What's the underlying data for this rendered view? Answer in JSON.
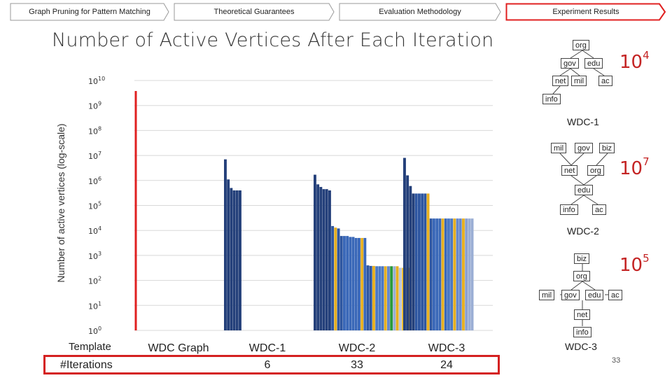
{
  "nav": {
    "tabs": [
      {
        "label": "Graph Pruning for Pattern Matching",
        "active": false
      },
      {
        "label": "Theoretical Guarantees",
        "active": false
      },
      {
        "label": "Evaluation Methodology",
        "active": false
      },
      {
        "label": "Experiment Results",
        "active": true
      }
    ],
    "active_color": "#e02020"
  },
  "slide": {
    "title": "Number of Active Vertices After Each Iteration",
    "page_number": "33"
  },
  "chart_data": {
    "type": "bar",
    "ylabel": "Number of active vertices (log-scale)",
    "yscale": "log",
    "ylim": [
      1,
      10000000000
    ],
    "y_ticks": [
      {
        "base": "10",
        "exp": "10"
      },
      {
        "base": "10",
        "exp": "9"
      },
      {
        "base": "10",
        "exp": "8"
      },
      {
        "base": "10",
        "exp": "7"
      },
      {
        "base": "10",
        "exp": "6"
      },
      {
        "base": "10",
        "exp": "5"
      },
      {
        "base": "10",
        "exp": "4"
      },
      {
        "base": "10",
        "exp": "3"
      },
      {
        "base": "10",
        "exp": "2"
      },
      {
        "base": "10",
        "exp": "1"
      },
      {
        "base": "10",
        "exp": "0"
      }
    ],
    "grid": true,
    "groups": [
      {
        "name": "WDC Graph",
        "iterations": "",
        "values": []
      },
      {
        "name": "WDC-1",
        "iterations": "6",
        "values": [
          7000000,
          1100000,
          500000,
          400000,
          400000,
          400000
        ]
      },
      {
        "name": "WDC-2",
        "iterations": "33",
        "values": [
          1700000,
          700000,
          550000,
          450000,
          450000,
          400000,
          15000,
          13000,
          12000,
          6000,
          6000,
          6000,
          5500,
          5500,
          5000,
          5000,
          5000,
          5000,
          400,
          380,
          380,
          370,
          370,
          370,
          370,
          370,
          370,
          370,
          370,
          320,
          320,
          320,
          320
        ],
        "colors": [
          "#24407a",
          "#24407a",
          "#24407a",
          "#24407a",
          "#24407a",
          "#24407a",
          "#2e56a0",
          "#e8b020",
          "#2e56a0",
          "#2e56a0",
          "#3a68b8",
          "#3a68b8",
          "#3a68b8",
          "#3a68b8",
          "#3a68b8",
          "#3a68b8",
          "#e8b020",
          "#3a68b8",
          "#2e56a0",
          "#2e56a0",
          "#e8b020",
          "#4a78c4",
          "#4a78c4",
          "#4a78c4",
          "#e8b020",
          "#6688cc",
          "#2a9a3a",
          "#9aaed4",
          "#e8b020",
          "#b8c4da",
          "#f0c030",
          "#c8cede",
          "#e8b020"
        ]
      },
      {
        "name": "WDC-3",
        "iterations": "24",
        "values": [
          8000000,
          1600000,
          600000,
          300000,
          300000,
          300000,
          300000,
          300000,
          300000,
          30000,
          30000,
          30000,
          30000,
          30000,
          30000,
          30000,
          30000,
          30000,
          30000,
          30000,
          30000,
          30000,
          30000,
          30000
        ],
        "colors": [
          "#24407a",
          "#24407a",
          "#24407a",
          "#24407a",
          "#2e56a0",
          "#2e56a0",
          "#2e56a0",
          "#2e56a0",
          "#e8b020",
          "#2e56a0",
          "#3a68b8",
          "#3a68b8",
          "#3a68b8",
          "#e8b020",
          "#3a68b8",
          "#4a78c4",
          "#4a78c4",
          "#e8b020",
          "#6688cc",
          "#6688cc",
          "#e8b020",
          "#8aa0d0",
          "#9aaed4",
          "#9aaed4"
        ]
      }
    ],
    "row_label": "#Iterations",
    "template_label": "Template",
    "colors": {
      "dark_bar": "#24407a",
      "mid_bar": "#3a68b8",
      "gold_bar": "#e8b020",
      "green_bar": "#2a9a3a",
      "red_line": "#e02020"
    }
  },
  "templates": [
    {
      "name": "WDC-1",
      "count_base": "10",
      "count_exp": "4",
      "nodes": [
        {
          "id": "org",
          "label": "org"
        },
        {
          "id": "gov",
          "label": "gov"
        },
        {
          "id": "edu",
          "label": "edu"
        },
        {
          "id": "net",
          "label": "net"
        },
        {
          "id": "mil",
          "label": "mil"
        },
        {
          "id": "ac",
          "label": "ac"
        },
        {
          "id": "info",
          "label": "info"
        }
      ]
    },
    {
      "name": "WDC-2",
      "count_base": "10",
      "count_exp": "7",
      "nodes": [
        {
          "id": "mil",
          "label": "mil"
        },
        {
          "id": "gov",
          "label": "gov"
        },
        {
          "id": "biz",
          "label": "biz"
        },
        {
          "id": "net",
          "label": "net"
        },
        {
          "id": "org",
          "label": "org"
        },
        {
          "id": "edu",
          "label": "edu"
        },
        {
          "id": "info",
          "label": "info"
        },
        {
          "id": "ac",
          "label": "ac"
        }
      ]
    },
    {
      "name": "WDC-3",
      "count_base": "10",
      "count_exp": "5",
      "nodes": [
        {
          "id": "biz",
          "label": "biz"
        },
        {
          "id": "org",
          "label": "org"
        },
        {
          "id": "mil",
          "label": "mil"
        },
        {
          "id": "gov",
          "label": "gov"
        },
        {
          "id": "edu",
          "label": "edu"
        },
        {
          "id": "ac",
          "label": "ac"
        },
        {
          "id": "net",
          "label": "net"
        },
        {
          "id": "info",
          "label": "info"
        }
      ]
    }
  ]
}
